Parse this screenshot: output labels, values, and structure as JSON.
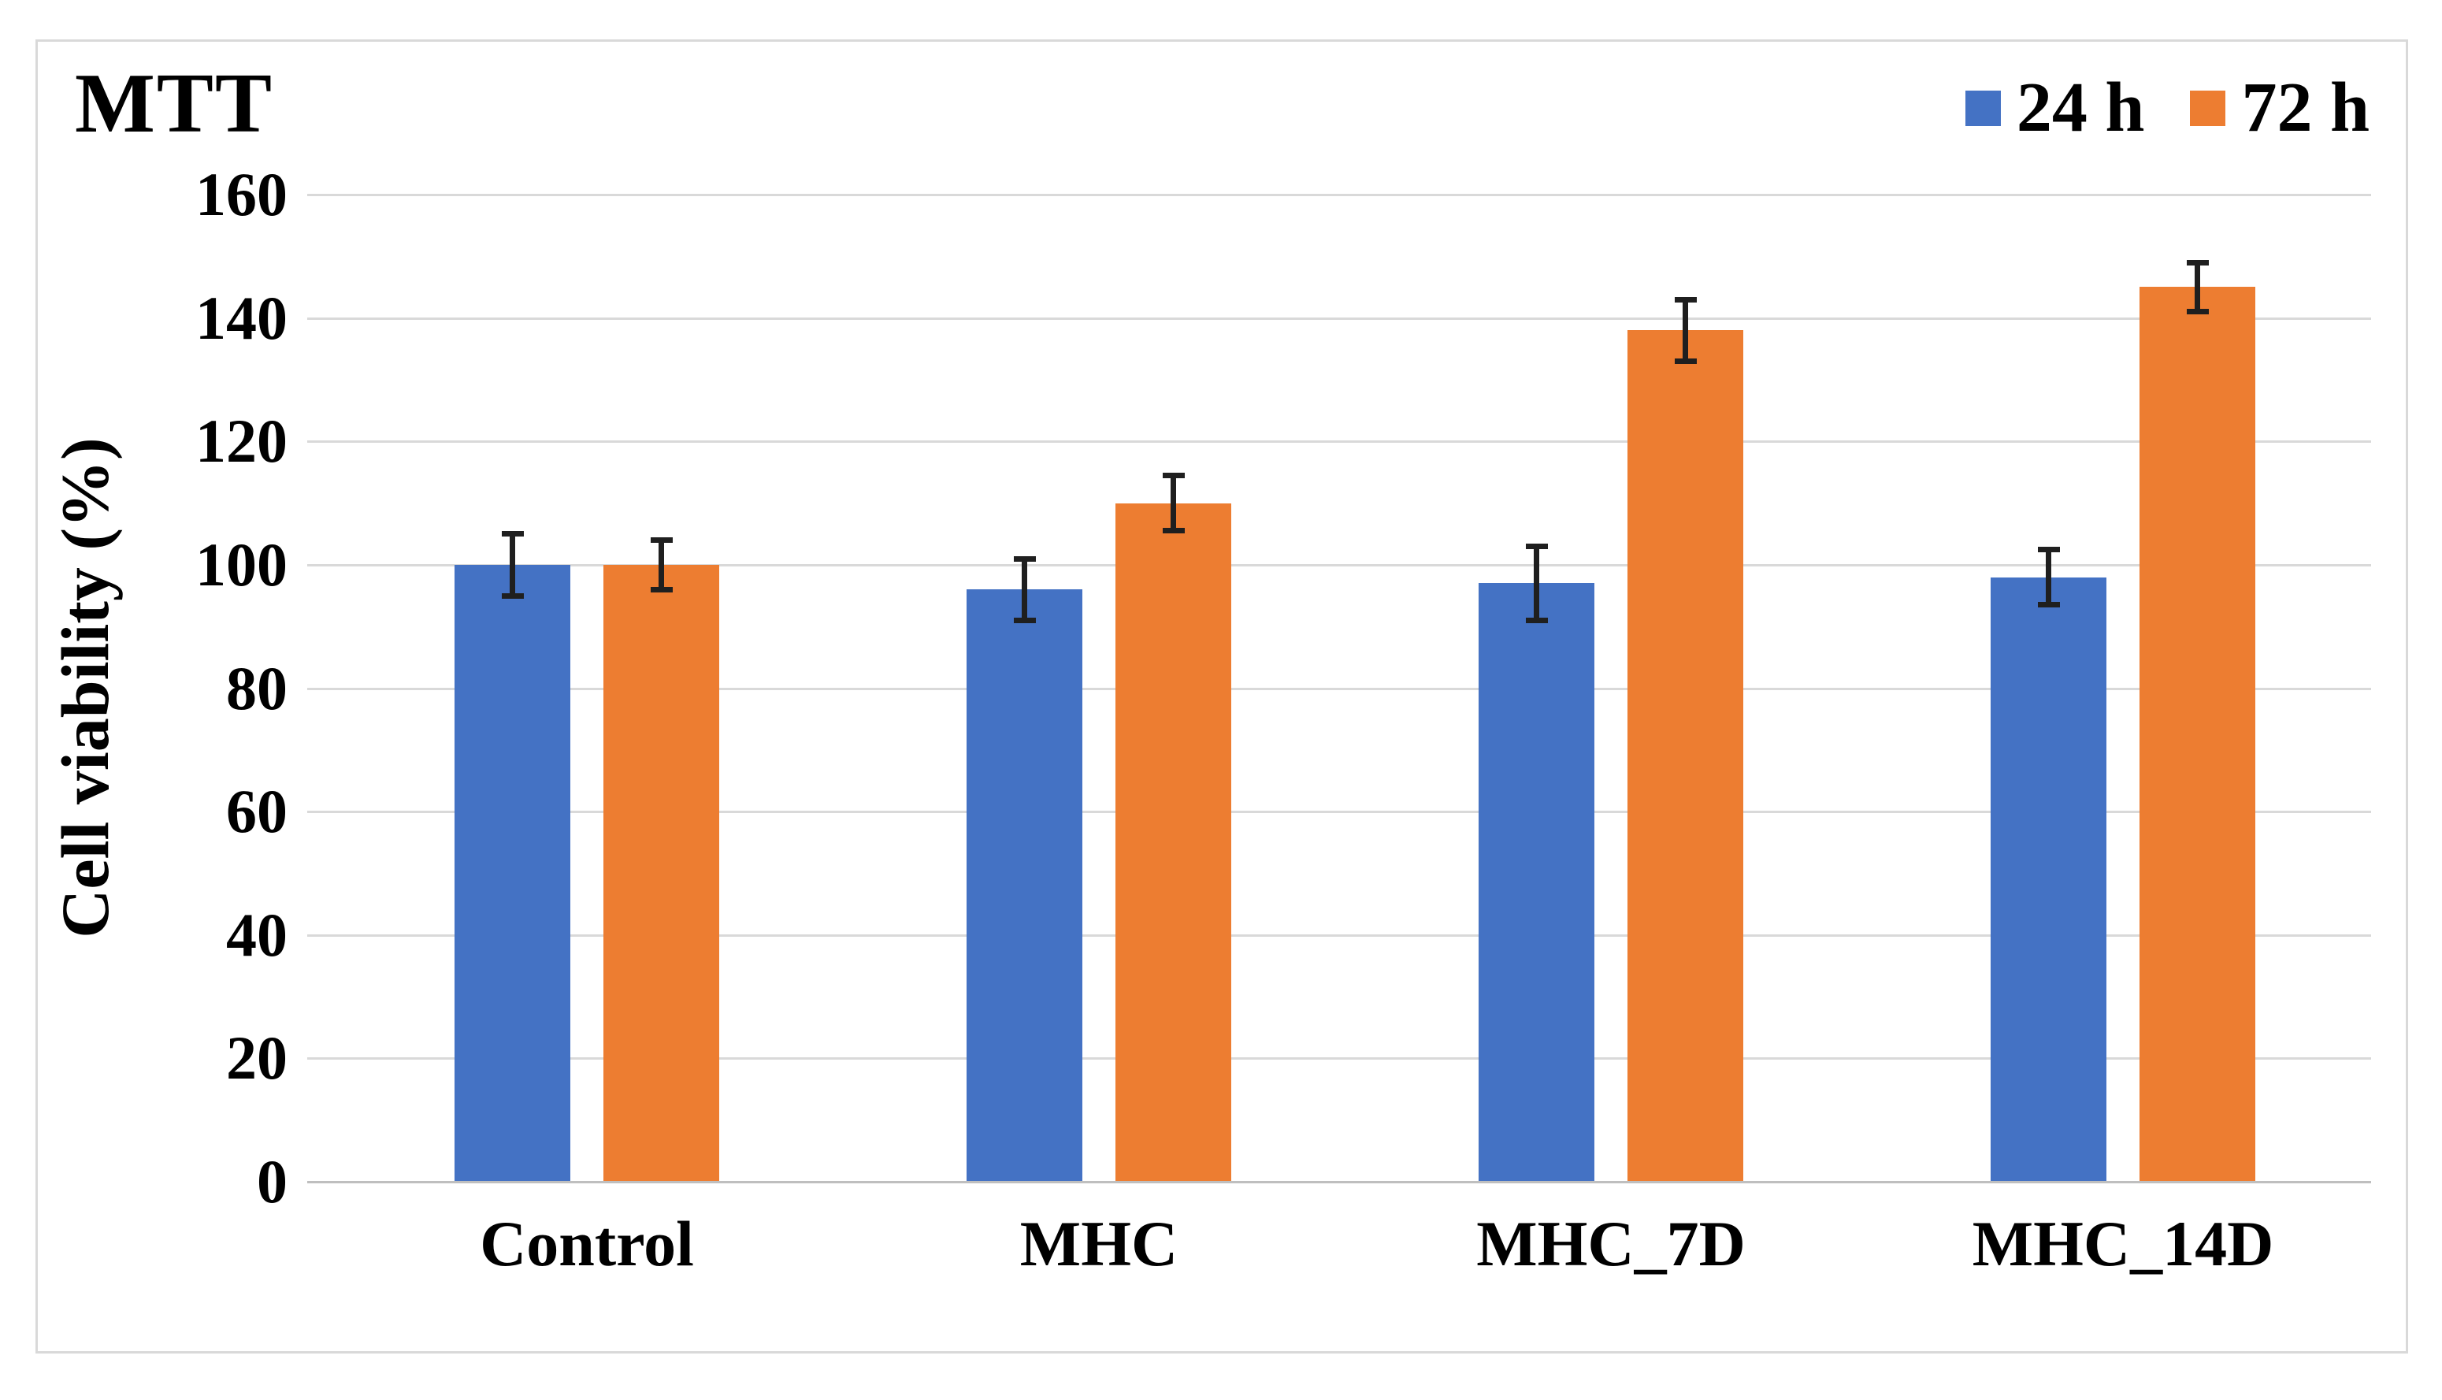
{
  "figure": {
    "title": "MTT"
  },
  "legend": {
    "items": [
      {
        "label": "24 h",
        "color": "#4472C4"
      },
      {
        "label": "72 h",
        "color": "#ED7D31"
      }
    ]
  },
  "chart_data": {
    "type": "bar",
    "title": "MTT",
    "categories": [
      "Control",
      "MHC",
      "MHC_7D",
      "MHC_14D"
    ],
    "series": [
      {
        "name": "24 h",
        "color": "#4472C4",
        "values": [
          100,
          96,
          97,
          98
        ],
        "errors": [
          5,
          5,
          6,
          4.5
        ]
      },
      {
        "name": "72 h",
        "color": "#ED7D31",
        "values": [
          100,
          110,
          138,
          145
        ],
        "errors": [
          4,
          4.5,
          5,
          4
        ]
      }
    ],
    "xlabel": "",
    "ylabel": "Cell viability (%)",
    "ylim": [
      0,
      160
    ],
    "yticks": [
      0,
      20,
      40,
      60,
      80,
      100,
      120,
      140,
      160
    ],
    "grid": true,
    "legend_position": "top-right",
    "error_bars": true,
    "colors": {
      "gridline": "#d9d9d9",
      "axis_line": "#bfbfbf",
      "error_bar": "#1f1f1f",
      "figure_border": "#d9d9d9",
      "text": "#000000",
      "background": "#ffffff"
    }
  }
}
